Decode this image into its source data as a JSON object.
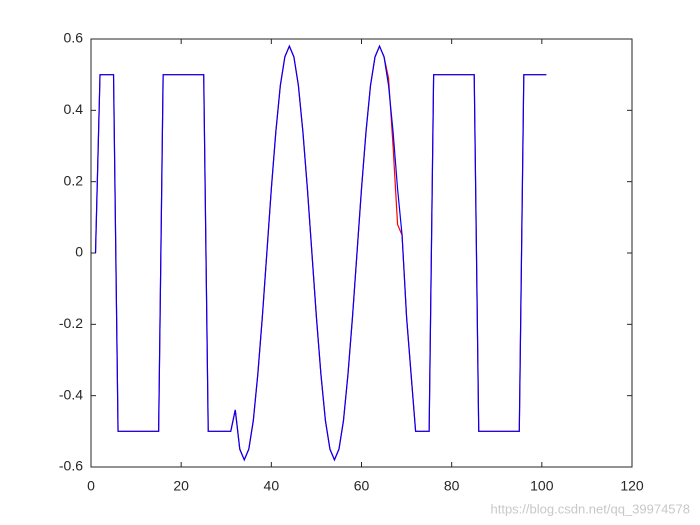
{
  "chart_data": {
    "type": "line",
    "x": [
      1,
      2,
      3,
      4,
      5,
      6,
      7,
      8,
      9,
      10,
      11,
      12,
      13,
      14,
      15,
      16,
      17,
      18,
      19,
      20,
      21,
      22,
      23,
      24,
      25,
      26,
      27,
      28,
      29,
      30,
      31,
      32,
      33,
      34,
      35,
      36,
      37,
      38,
      39,
      40,
      41,
      42,
      43,
      44,
      45,
      46,
      47,
      48,
      49,
      50,
      51,
      52,
      53,
      54,
      55,
      56,
      57,
      58,
      59,
      60,
      61,
      62,
      63,
      64,
      65,
      66,
      67,
      68,
      69,
      70,
      71,
      72,
      73,
      74,
      75,
      76,
      77,
      78,
      79,
      80,
      81,
      82,
      83,
      84,
      85,
      86,
      87,
      88,
      89,
      90,
      91,
      92,
      93,
      94,
      95,
      96,
      97,
      98,
      99,
      100,
      101
    ],
    "series": [
      {
        "color": "#ff0000",
        "values": [
          0,
          0.5,
          0.5,
          0.5,
          0.5,
          -0.5,
          -0.5,
          -0.5,
          -0.5,
          -0.5,
          -0.5,
          -0.5,
          -0.5,
          -0.5,
          -0.5,
          0.5,
          0.5,
          0.5,
          0.5,
          0.5,
          0.5,
          0.5,
          0.5,
          0.5,
          0.5,
          -0.5,
          -0.5,
          -0.5,
          -0.5,
          -0.5,
          -0.5,
          -0.44,
          -0.55,
          -0.58,
          -0.55,
          -0.47,
          -0.34,
          -0.18,
          0,
          0.18,
          0.34,
          0.47,
          0.55,
          0.58,
          0.55,
          0.47,
          0.34,
          0.18,
          0,
          -0.18,
          -0.34,
          -0.47,
          -0.55,
          -0.58,
          -0.55,
          -0.47,
          -0.34,
          -0.18,
          0,
          0.18,
          0.34,
          0.47,
          0.55,
          0.58,
          0.55,
          0.49,
          0.3,
          0.08,
          0.05,
          -0.18,
          -0.34,
          -0.5,
          -0.5,
          -0.5,
          -0.5,
          0.5,
          0.5,
          0.5,
          0.5,
          0.5,
          0.5,
          0.5,
          0.5,
          0.5,
          0.5,
          -0.5,
          -0.5,
          -0.5,
          -0.5,
          -0.5,
          -0.5,
          -0.5,
          -0.5,
          -0.5,
          -0.5,
          0.5,
          0.5,
          0.5,
          0.5,
          0.5,
          0.5
        ]
      },
      {
        "color": "#0000ff",
        "values": [
          0,
          0.5,
          0.5,
          0.5,
          0.5,
          -0.5,
          -0.5,
          -0.5,
          -0.5,
          -0.5,
          -0.5,
          -0.5,
          -0.5,
          -0.5,
          -0.5,
          0.5,
          0.5,
          0.5,
          0.5,
          0.5,
          0.5,
          0.5,
          0.5,
          0.5,
          0.5,
          -0.5,
          -0.5,
          -0.5,
          -0.5,
          -0.5,
          -0.5,
          -0.44,
          -0.55,
          -0.58,
          -0.55,
          -0.47,
          -0.34,
          -0.18,
          0,
          0.18,
          0.34,
          0.47,
          0.55,
          0.58,
          0.55,
          0.47,
          0.34,
          0.18,
          0,
          -0.18,
          -0.34,
          -0.47,
          -0.55,
          -0.58,
          -0.55,
          -0.47,
          -0.34,
          -0.18,
          0,
          0.18,
          0.34,
          0.47,
          0.55,
          0.58,
          0.55,
          0.47,
          0.34,
          0.18,
          0.05,
          -0.18,
          -0.34,
          -0.5,
          -0.5,
          -0.5,
          -0.5,
          0.5,
          0.5,
          0.5,
          0.5,
          0.5,
          0.5,
          0.5,
          0.5,
          0.5,
          0.5,
          -0.5,
          -0.5,
          -0.5,
          -0.5,
          -0.5,
          -0.5,
          -0.5,
          -0.5,
          -0.5,
          -0.5,
          0.5,
          0.5,
          0.5,
          0.5,
          0.5,
          0.5
        ]
      }
    ],
    "xlim": [
      0,
      120
    ],
    "xticks": [
      0,
      20,
      40,
      60,
      80,
      100,
      120
    ],
    "ylim": [
      -0.6,
      0.6
    ],
    "yticks": [
      -0.6,
      -0.4,
      -0.2,
      0,
      0.2,
      0.4,
      0.6
    ],
    "watermark": "https://blog.csdn.net/qq_39974578"
  }
}
